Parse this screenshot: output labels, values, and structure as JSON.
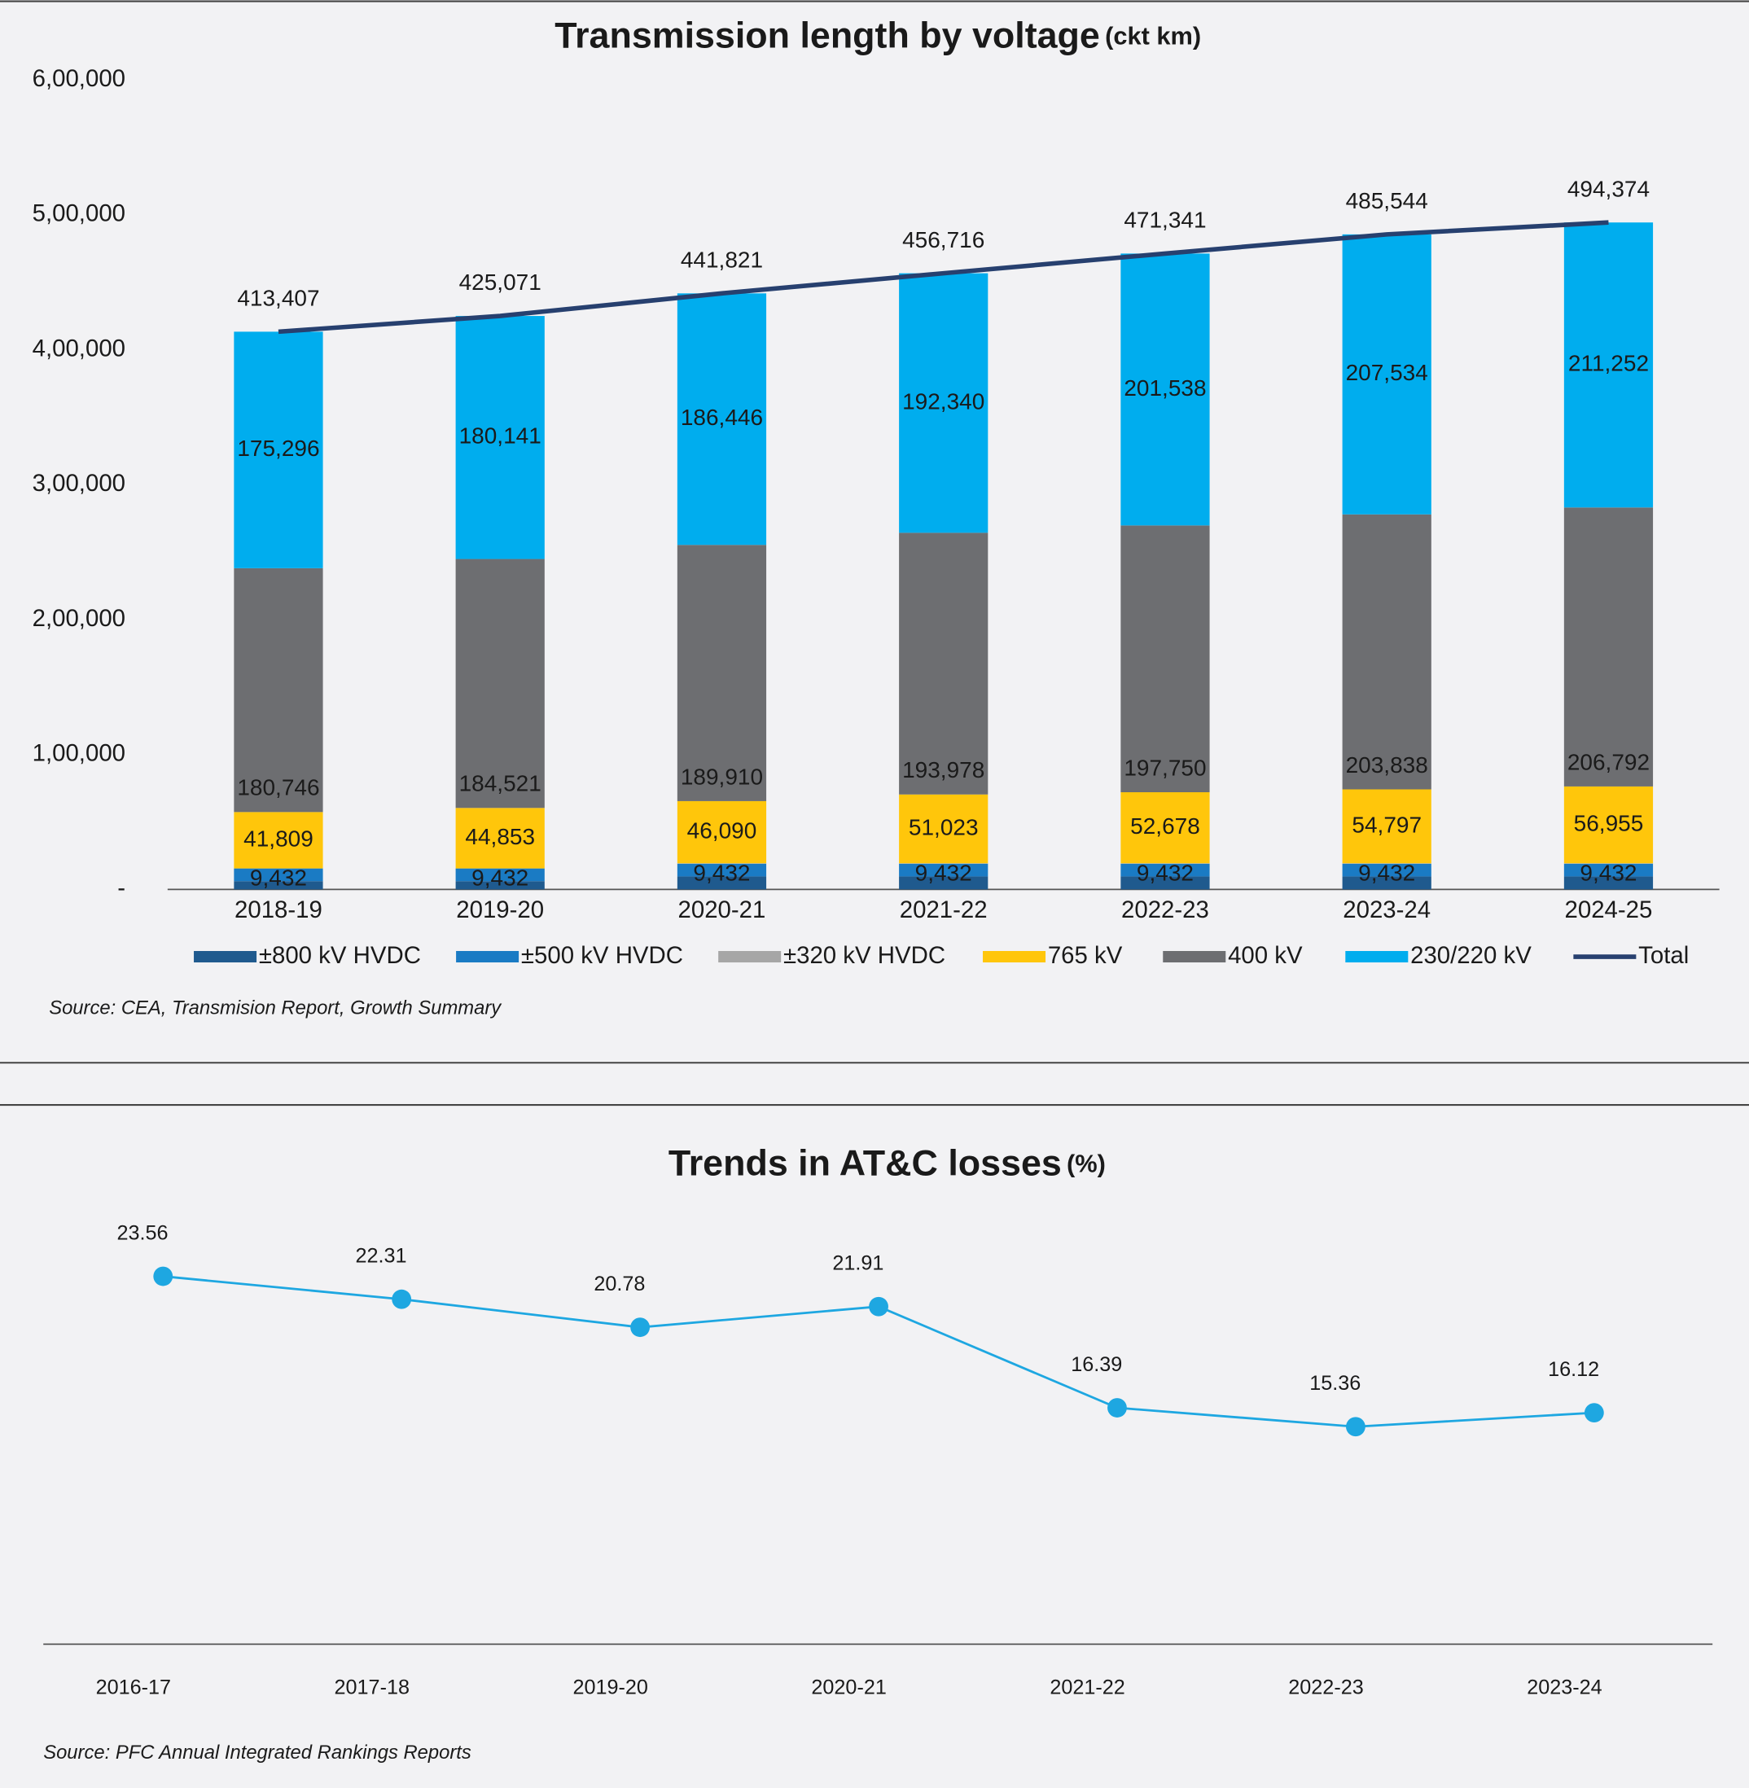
{
  "chart_data": [
    {
      "type": "bar",
      "stacked": true,
      "title": "Transmission length by voltage",
      "title_unit": "(ckt km)",
      "source": "Source: CEA, Transmision Report, Growth Summary",
      "categories": [
        "2018-19",
        "2019-20",
        "2020-21",
        "2021-22",
        "2022-23",
        "2023-24",
        "2024-25"
      ],
      "ylim": [
        0,
        600000
      ],
      "yticks": [
        {
          "value": 0,
          "label": "-"
        },
        {
          "value": 100000,
          "label": "1,00,000"
        },
        {
          "value": 200000,
          "label": "2,00,000"
        },
        {
          "value": 300000,
          "label": "3,00,000"
        },
        {
          "value": 400000,
          "label": "4,00,000"
        },
        {
          "value": 500000,
          "label": "5,00,000"
        },
        {
          "value": 600000,
          "label": "6,00,000"
        }
      ],
      "series": [
        {
          "name": "±800 kV HVDC",
          "color": "#1f5a8e",
          "values": [
            6124,
            6124,
            9655,
            9655,
            9655,
            9655,
            9655
          ]
        },
        {
          "name": "±500 kV HVDC",
          "color": "#1a7bc4",
          "values": [
            9432,
            9432,
            9432,
            9432,
            9432,
            9432,
            9432
          ],
          "value_labels": [
            "9,432",
            "9,432",
            "9,432",
            "9,432",
            "9,432",
            "9,432",
            "9,432"
          ]
        },
        {
          "name": "±320 kV HVDC",
          "color": "#a6a6a6",
          "values": [
            0,
            0,
            288,
            288,
            288,
            288,
            288
          ]
        },
        {
          "name": "765 kV",
          "color": "#ffc60b",
          "values": [
            41809,
            44853,
            46090,
            51023,
            52678,
            54797,
            56955
          ],
          "value_labels": [
            "41,809",
            "44,853",
            "46,090",
            "51,023",
            "52,678",
            "54,797",
            "56,955"
          ]
        },
        {
          "name": "400 kV",
          "color": "#6d6e71",
          "values": [
            180746,
            184521,
            189910,
            193978,
            197750,
            203838,
            206792
          ],
          "value_labels": [
            "180,746",
            "184,521",
            "189,910",
            "193,978",
            "197,750",
            "203,838",
            "206,792"
          ]
        },
        {
          "name": "230/220 kV",
          "color": "#00adee",
          "values": [
            175296,
            180141,
            186446,
            192340,
            201538,
            207534,
            211252
          ],
          "value_labels": [
            "175,296",
            "180,141",
            "186,446",
            "192,340",
            "201,538",
            "207,534",
            "211,252"
          ]
        },
        {
          "name": "Total",
          "type": "line",
          "color": "#27406f",
          "values": [
            413407,
            425071,
            441821,
            456716,
            471341,
            485544,
            494374
          ],
          "value_labels": [
            "413,407",
            "425,071",
            "441,821",
            "456,716",
            "471,341",
            "485,544",
            "494,374"
          ]
        }
      ]
    },
    {
      "type": "line",
      "title": "Trends in AT&C losses",
      "title_unit": "(%)",
      "source": "Source: PFC Annual Integrated Rankings Reports",
      "categories": [
        "2016-17",
        "2017-18",
        "2019-20",
        "2020-21",
        "2021-22",
        "2022-23",
        "2023-24"
      ],
      "ylim": [
        3.5,
        27
      ],
      "color": "#1ea7e1",
      "values": [
        23.56,
        22.31,
        20.78,
        21.91,
        16.39,
        15.36,
        16.12
      ]
    }
  ]
}
